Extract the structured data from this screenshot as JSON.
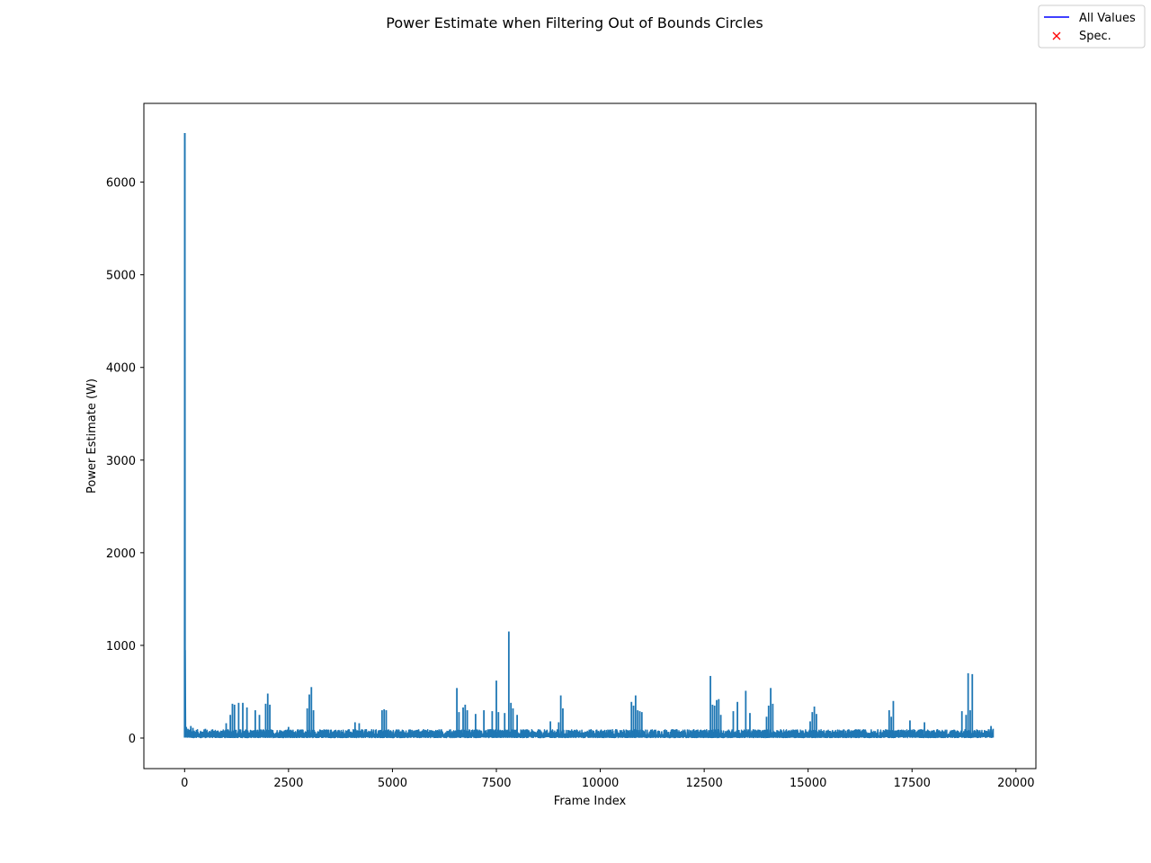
{
  "chart_data": {
    "type": "line",
    "title": "Power Estimate when Filtering Out of Bounds Circles",
    "xlabel": "Frame Index",
    "ylabel": "Power Estimate (W)",
    "xlim": [
      -980,
      20480
    ],
    "ylim": [
      -330,
      6850
    ],
    "xticks": [
      0,
      2500,
      5000,
      7500,
      10000,
      12500,
      15000,
      17500,
      20000
    ],
    "yticks": [
      0,
      1000,
      2000,
      3000,
      4000,
      5000,
      6000
    ],
    "grid": false,
    "legend": {
      "placement": "top-right",
      "entries": [
        {
          "label": "All Values",
          "marker": "line",
          "color": "#0000ff"
        },
        {
          "label": "Spec.",
          "marker": "x",
          "color": "#ff0000"
        }
      ]
    },
    "series": [
      {
        "color": "#1f77b4",
        "baseline": [
          5,
          90
        ],
        "x": [
          0,
          5,
          10,
          20,
          40,
          80,
          150,
          200,
          500,
          1000,
          1100,
          1150,
          1200,
          1300,
          1400,
          1500,
          1700,
          1800,
          1950,
          2000,
          2050,
          2500,
          2950,
          3000,
          3050,
          3100,
          4100,
          4200,
          4750,
          4800,
          4850,
          6550,
          6600,
          6700,
          6750,
          6800,
          7000,
          7200,
          7400,
          7500,
          7550,
          7700,
          7800,
          7850,
          7900,
          8000,
          8800,
          9000,
          9050,
          9100,
          10750,
          10800,
          10850,
          10900,
          10950,
          11000,
          12650,
          12700,
          12750,
          12800,
          12850,
          12900,
          13200,
          13300,
          13500,
          13600,
          14000,
          14050,
          14100,
          14150,
          15050,
          15100,
          15150,
          15200,
          16950,
          17000,
          17050,
          17450,
          17800,
          18700,
          18800,
          18850,
          18900,
          18950,
          19400,
          19450
        ],
        "y": [
          900,
          6530,
          950,
          150,
          120,
          100,
          130,
          110,
          100,
          160,
          250,
          370,
          360,
          380,
          380,
          330,
          300,
          250,
          370,
          480,
          360,
          120,
          320,
          470,
          550,
          300,
          170,
          160,
          300,
          310,
          300,
          540,
          280,
          330,
          360,
          300,
          260,
          300,
          290,
          620,
          280,
          270,
          1150,
          380,
          320,
          250,
          180,
          170,
          460,
          320,
          390,
          350,
          460,
          300,
          290,
          280,
          670,
          360,
          350,
          410,
          420,
          250,
          290,
          390,
          510,
          270,
          230,
          350,
          540,
          370,
          180,
          280,
          340,
          260,
          300,
          230,
          400,
          190,
          170,
          290,
          250,
          700,
          300,
          690,
          130,
          100
        ]
      }
    ]
  }
}
